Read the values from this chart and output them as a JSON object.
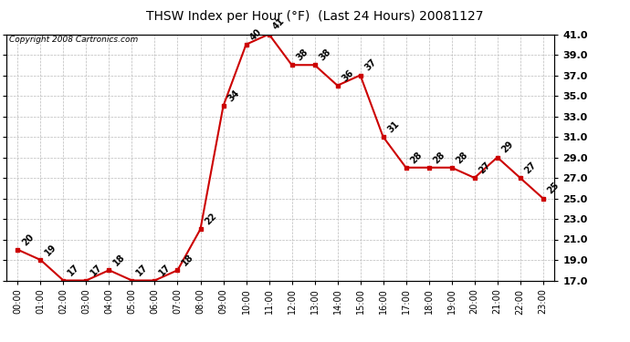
{
  "title": "THSW Index per Hour (°F)  (Last 24 Hours) 20081127",
  "copyright": "Copyright 2008 Cartronics.com",
  "hours": [
    "00:00",
    "01:00",
    "02:00",
    "03:00",
    "04:00",
    "05:00",
    "06:00",
    "07:00",
    "08:00",
    "09:00",
    "10:00",
    "11:00",
    "12:00",
    "13:00",
    "14:00",
    "15:00",
    "16:00",
    "17:00",
    "18:00",
    "19:00",
    "20:00",
    "21:00",
    "22:00",
    "23:00"
  ],
  "values": [
    20,
    19,
    17,
    17,
    18,
    17,
    17,
    18,
    22,
    34,
    40,
    41,
    38,
    38,
    36,
    37,
    31,
    28,
    28,
    28,
    27,
    29,
    27,
    25
  ],
  "ylim_min": 17.0,
  "ylim_max": 41.0,
  "yticks": [
    17.0,
    19.0,
    21.0,
    23.0,
    25.0,
    27.0,
    29.0,
    31.0,
    33.0,
    35.0,
    37.0,
    39.0,
    41.0
  ],
  "line_color": "#cc0000",
  "marker_color": "#cc0000",
  "bg_color": "#ffffff",
  "grid_color": "#bbbbbb",
  "title_fontsize": 10,
  "copyright_fontsize": 6.5,
  "label_fontsize": 7,
  "tick_fontsize": 7,
  "right_ytick_fontsize": 8
}
